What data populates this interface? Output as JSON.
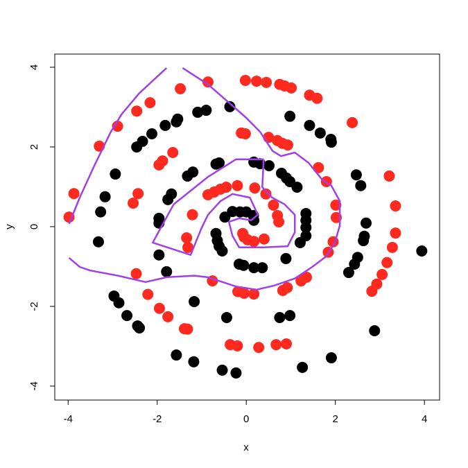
{
  "chart_data": {
    "type": "scatter",
    "xlabel": "x",
    "ylabel": "y",
    "xlim": [
      -4.3,
      4.34
    ],
    "ylim": [
      -4.35,
      4.33
    ],
    "xticks": [
      -4,
      -2,
      0,
      2,
      4
    ],
    "yticks": [
      -4,
      -2,
      0,
      2,
      4
    ],
    "series": [
      {
        "color": "#000000",
        "x": [
          -0.37,
          -0.9,
          -1.09,
          -1.54,
          -1.57,
          -1.82,
          -2.12,
          -2.33,
          -2.46,
          -2.94,
          -3.17,
          -3.27,
          -3.32,
          -2.97,
          -2.86,
          -2.68,
          -2.44,
          -2.4,
          -1.57,
          -1.18,
          -0.54,
          -0.23,
          1.26,
          1.91,
          2.88,
          3.94,
          2.3,
          2.43,
          2.5,
          2.65,
          2.63,
          2.69,
          2.57,
          2.47,
          1.91,
          1.66,
          1.42,
          0.98,
          1.9,
          -0.44,
          -1.96,
          -1.79,
          -1.17,
          0.75,
          0.98,
          1.21,
          1.34,
          1.34,
          1.34,
          1.34,
          1.14,
          0.98,
          0.9,
          0.79,
          0.51,
          0.31,
          0.17,
          -0.61,
          -0.68,
          -1.2,
          -1.32,
          -1.68,
          -1.76,
          -1.96,
          -1.96,
          -0.48,
          -0.31,
          -0.14,
          0,
          0.16,
          0.17,
          -0.68,
          -0.65,
          -0.61,
          -0.54,
          -0.16,
          -0.06,
          0.17,
          0.36,
          0.89
        ],
        "values": [
          3.01,
          2.92,
          2.87,
          2.7,
          2.63,
          2.54,
          2.33,
          2.14,
          2.0,
          1.32,
          0.75,
          0.37,
          -0.38,
          -1.74,
          -1.91,
          -2.23,
          -2.49,
          -2.54,
          -3.22,
          -3.39,
          -3.6,
          -3.67,
          -3.53,
          -3.29,
          -2.61,
          -0.61,
          -1.15,
          -0.94,
          -0.77,
          -0.24,
          -0.35,
          0.09,
          1.03,
          1.3,
          2.12,
          2.35,
          2.54,
          2.77,
          2.19,
          -2.28,
          -0.71,
          -1.13,
          -1.88,
          -2.28,
          -2.23,
          -0.4,
          0.33,
          0.16,
          -0.02,
          -0.23,
          0.99,
          1.13,
          1.22,
          1.34,
          1.53,
          1.58,
          1.62,
          1.6,
          1.57,
          1.37,
          1.27,
          0.82,
          0.68,
          0.21,
          0.09,
          0.24,
          0.38,
          0.37,
          0.37,
          0.28,
          0.16,
          -0.17,
          -0.35,
          -0.49,
          -0.61,
          -0.94,
          -0.97,
          -1.03,
          -1.03,
          -0.8
        ]
      },
      {
        "color": "#ff2a1f",
        "x": [
          -0.02,
          0.23,
          0.45,
          0.75,
          0.86,
          1.01,
          1.42,
          1.59,
          2.38,
          -0.86,
          -1.48,
          -2.16,
          -2.46,
          -2.89,
          -3.3,
          -3.87,
          -3.98,
          -2.54,
          -2.43,
          -1.96,
          -1.88,
          -1.65,
          -0.11,
          -0.02,
          0.5,
          0.7,
          0.81,
          0.93,
          1.62,
          1.8,
          2.01,
          2.02,
          1.95,
          1.84,
          3.21,
          3.35,
          3.35,
          3.28,
          3.16,
          3.05,
          2.93,
          2.82,
          -1.21,
          -1.34,
          -1.31,
          -2.47,
          -2.21,
          -1.95,
          -1.76,
          -1.39,
          -1.32,
          -0.76,
          -0.19,
          -0.05,
          0.17,
          0.82,
          0.92,
          1.23,
          1.35,
          -0.36,
          -0.2,
          0.28,
          0.67,
          0.9,
          -0.86,
          -0.72,
          -0.58,
          -0.45,
          -0.2,
          0.19,
          0.44,
          0.61,
          0.7,
          0.73,
          -0.08,
          -0.05,
          0.03,
          0.17,
          0.4
        ],
        "values": [
          3.67,
          3.65,
          3.62,
          3.57,
          3.53,
          3.48,
          3.3,
          3.22,
          2.61,
          3.63,
          3.46,
          3.11,
          2.9,
          2.52,
          2.02,
          0.83,
          0.24,
          0.59,
          0.83,
          1.55,
          1.65,
          1.86,
          2.35,
          2.33,
          2.24,
          2.16,
          2.09,
          2.05,
          1.48,
          1.13,
          0.54,
          0.23,
          -0.38,
          -0.64,
          1.27,
          0.52,
          -0.16,
          -0.52,
          -0.9,
          -1.2,
          -1.44,
          -1.62,
          0.3,
          -0.28,
          -0.52,
          -1.18,
          -1.7,
          -2.05,
          -2.26,
          -2.56,
          -2.57,
          -1.36,
          -1.63,
          -1.67,
          -1.69,
          -1.6,
          -1.53,
          -1.36,
          -1.27,
          -2.96,
          -2.99,
          -3.03,
          -2.96,
          -2.94,
          0.8,
          0.87,
          0.94,
          0.99,
          1.03,
          0.97,
          0.82,
          0.54,
          0.28,
          0.12,
          -0.17,
          -0.26,
          -0.33,
          -0.37,
          -0.31
        ]
      }
    ],
    "curve": {
      "color": "#a040e8",
      "x": [
        -3.98,
        -3.74,
        -3.42,
        -3.04,
        -2.8,
        -2.41,
        -1.79,
        null,
        -1.43,
        -0.86,
        -0.39,
        0,
        0.31,
        0.59,
        0.78,
        1.09,
        1.4,
        1.71,
        1.91,
        2.1,
        2.1,
        1.99,
        1.79,
        1.48,
        1.09,
        0.62,
        0.23,
        -0.23,
        -0.86,
        -1.17,
        -1.79,
        -2.26,
        -2.88,
        -3.5,
        -3.74,
        -3.98,
        null,
        0.39,
        0.36,
        0.58,
        0.86,
        1.09,
        1.09,
        0.93,
        0.39,
        -0.16,
        -0.31,
        -0.39,
        -0.16,
        0.11,
        0.26,
        0.08,
        -0.31,
        -0.58,
        -0.86,
        -1.01,
        -1.25,
        -2.1,
        -1.63,
        -0.86,
        -0.23,
        0.39
      ],
      "y": [
        0.07,
        0.73,
        1.51,
        2.38,
        2.82,
        3.34,
        3.98,
        null,
        3.98,
        3.57,
        3.11,
        2.73,
        2.38,
        1.9,
        1.77,
        1.86,
        1.6,
        1.17,
        1.03,
        0.64,
        0.03,
        -0.4,
        -0.75,
        -1.01,
        -1.3,
        -1.48,
        -1.58,
        -1.5,
        -1.27,
        -1.23,
        -1.27,
        -1.39,
        -1.23,
        -1.1,
        -1.01,
        -0.78,
        null,
        1.69,
        0.99,
        0.73,
        0.56,
        0.3,
        -0.14,
        -0.49,
        -0.52,
        -0.52,
        -0.23,
        0.12,
        0.21,
        0.16,
        0.3,
        0.73,
        0.82,
        0.64,
        0.3,
        -0.05,
        -0.71,
        -0.4,
        0.56,
        1.25,
        1.69,
        1.69
      ]
    }
  }
}
